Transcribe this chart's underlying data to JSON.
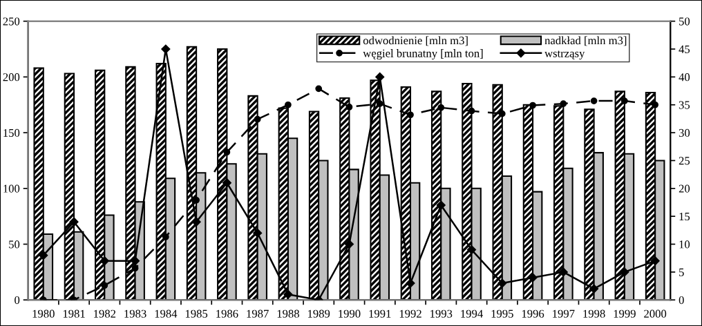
{
  "chart_data": {
    "type": "bar",
    "categories": [
      "1980",
      "1981",
      "1982",
      "1983",
      "1984",
      "1985",
      "1986",
      "1987",
      "1988",
      "1989",
      "1990",
      "1991",
      "1992",
      "1993",
      "1994",
      "1995",
      "1996",
      "1997",
      "1998",
      "1999",
      "2000"
    ],
    "series": [
      {
        "name": "odwodnienie [mln m3]",
        "color": "#000000",
        "values": [
          208,
          203,
          206,
          209,
          212,
          227,
          225,
          183,
          172,
          169,
          181,
          197,
          191,
          187,
          194,
          193,
          175,
          174,
          171,
          187,
          186
        ]
      },
      {
        "name": "nadkład [mln m3]",
        "color": "#c0c0c0",
        "values": [
          59,
          61,
          76,
          88,
          109,
          114,
          122,
          131,
          145,
          125,
          117,
          112,
          105,
          100,
          100,
          111,
          97,
          118,
          132,
          131,
          125
        ]
      },
      {
        "name": "węgiel brunatny [mln ton]",
        "type": "line",
        "axis": "y2",
        "color": "#000000",
        "marker": "circle",
        "line_style": "dashed",
        "values": [
          0,
          0,
          2.6,
          5.7,
          11.3,
          17.9,
          26.5,
          32.4,
          35,
          37.9,
          34.6,
          35.2,
          33.2,
          34.5,
          33.9,
          33.4,
          34.9,
          35.2,
          35.7,
          35.7,
          35
        ]
      },
      {
        "name": "wstrząsy",
        "type": "line",
        "axis": "y2",
        "color": "#000000",
        "marker": "diamond",
        "line_style": "solid",
        "values": [
          8,
          14,
          7,
          7,
          45,
          14,
          21,
          12,
          1,
          0,
          10,
          40,
          3,
          17,
          9,
          3,
          4,
          5,
          2,
          5,
          7
        ]
      }
    ],
    "ylim": [
      0,
      250
    ],
    "yticks": [
      0,
      50,
      100,
      150,
      200,
      250
    ],
    "y2lim": [
      0,
      50
    ],
    "y2ticks": [
      0,
      5,
      10,
      15,
      20,
      25,
      30,
      35,
      40,
      45,
      50
    ],
    "grid": false,
    "legend": "top right"
  }
}
